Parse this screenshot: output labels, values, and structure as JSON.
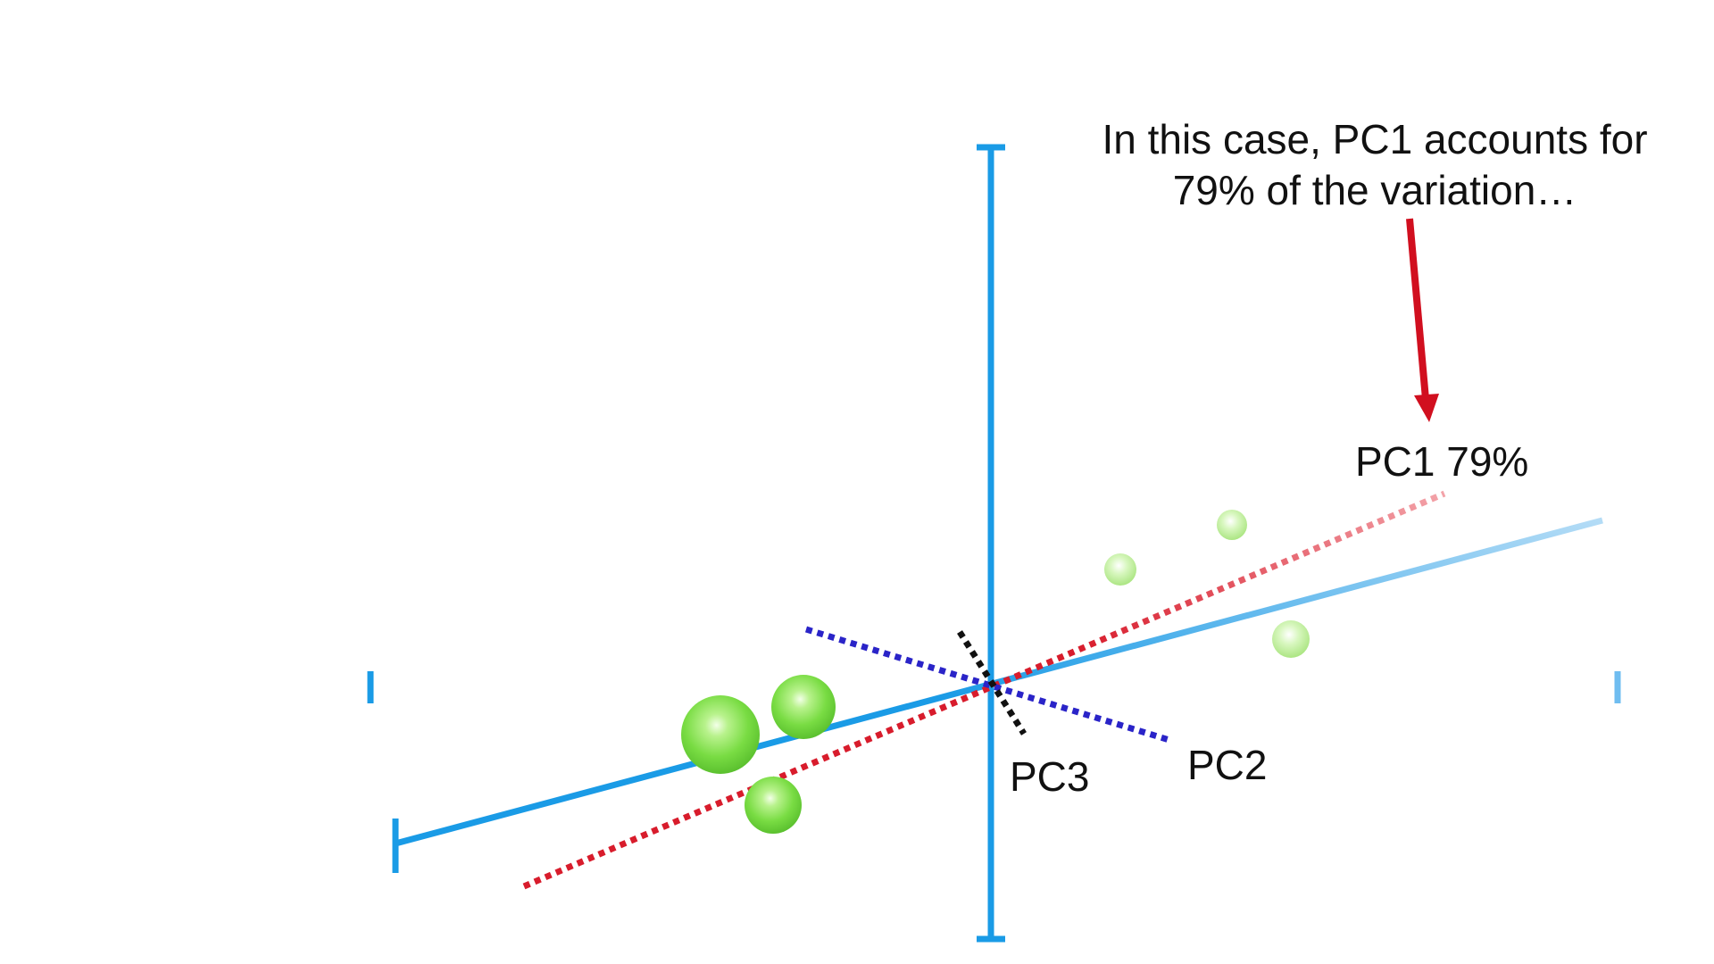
{
  "annotation": {
    "line1": "In this case, PC1 accounts for",
    "line2": "79% of the variation…"
  },
  "labels": {
    "pc1": "PC1 79%",
    "pc2": "PC2",
    "pc3": "PC3"
  },
  "colors": {
    "axis": "#1a9be6",
    "pc1": "#d81c2c",
    "pc2": "#2a24c8",
    "pc3": "#111111",
    "point": "#8fe05b",
    "arrow": "#d10f1f"
  }
}
